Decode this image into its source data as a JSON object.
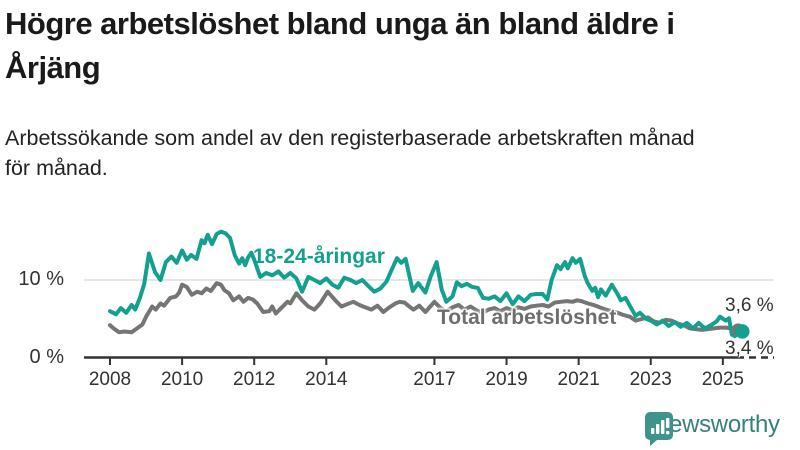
{
  "title": "Högre arbetslöshet bland unga än bland äldre i Årjäng",
  "subtitle": "Arbetssökande som andel av den registerbaserade arbetskraften månad för månad.",
  "branding": {
    "logo_text": "Newsworthy",
    "logo_color": "#35827c",
    "icon_color": "#3e938b"
  },
  "chart_data": {
    "type": "line",
    "unit": "%",
    "title": "Arbetssökande som andel av den registerbaserade arbetskraften månad för månad",
    "x_ticks": [
      "2008",
      "2010",
      "2012",
      "2014",
      "2017",
      "2019",
      "2021",
      "2023",
      "2025"
    ],
    "x_tick_values": [
      2008,
      2010,
      2012,
      2014,
      2017,
      2019,
      2021,
      2023,
      2025
    ],
    "x_range": [
      2008,
      2025.6
    ],
    "y_ticks": [
      {
        "value": 0,
        "label": "0 %"
      },
      {
        "value": 10,
        "label": "10 %"
      }
    ],
    "y_range": [
      0,
      17
    ],
    "grid": "horizontal-10-only",
    "legend_position": "inline-labels",
    "colors": {
      "youth": "#14a08f",
      "total": "#757575",
      "axis": "#333333",
      "gridline": "#dedede"
    },
    "series": [
      {
        "id": "total",
        "label": "Total arbetslöshet",
        "color": "#757575",
        "end_label": "3,6 %",
        "end_value": 3.6,
        "points": [
          [
            2008.0,
            4.2
          ],
          [
            2008.1,
            3.8
          ],
          [
            2008.25,
            3.3
          ],
          [
            2008.4,
            3.4
          ],
          [
            2008.6,
            3.3
          ],
          [
            2008.75,
            3.8
          ],
          [
            2008.9,
            4.3
          ],
          [
            2009.0,
            5.3
          ],
          [
            2009.17,
            6.6
          ],
          [
            2009.27,
            6.2
          ],
          [
            2009.4,
            7.0
          ],
          [
            2009.5,
            6.7
          ],
          [
            2009.67,
            7.7
          ],
          [
            2009.83,
            7.9
          ],
          [
            2009.92,
            8.4
          ],
          [
            2010.0,
            9.4
          ],
          [
            2010.13,
            9.1
          ],
          [
            2010.27,
            8.1
          ],
          [
            2010.42,
            8.5
          ],
          [
            2010.54,
            8.3
          ],
          [
            2010.67,
            8.9
          ],
          [
            2010.8,
            8.6
          ],
          [
            2010.96,
            9.6
          ],
          [
            2011.08,
            9.4
          ],
          [
            2011.17,
            8.7
          ],
          [
            2011.3,
            8.3
          ],
          [
            2011.42,
            7.4
          ],
          [
            2011.58,
            7.9
          ],
          [
            2011.7,
            7.2
          ],
          [
            2011.83,
            7.7
          ],
          [
            2011.96,
            7.5
          ],
          [
            2012.08,
            7.0
          ],
          [
            2012.25,
            5.9
          ],
          [
            2012.42,
            6.0
          ],
          [
            2012.5,
            6.6
          ],
          [
            2012.6,
            5.7
          ],
          [
            2012.75,
            6.4
          ],
          [
            2012.92,
            7.2
          ],
          [
            2013.0,
            7.0
          ],
          [
            2013.17,
            8.3
          ],
          [
            2013.33,
            7.4
          ],
          [
            2013.5,
            6.6
          ],
          [
            2013.67,
            6.2
          ],
          [
            2013.83,
            7.0
          ],
          [
            2014.04,
            8.5
          ],
          [
            2014.25,
            7.4
          ],
          [
            2014.42,
            6.6
          ],
          [
            2014.58,
            6.9
          ],
          [
            2014.75,
            7.2
          ],
          [
            2014.92,
            6.8
          ],
          [
            2015.08,
            6.5
          ],
          [
            2015.25,
            6.2
          ],
          [
            2015.42,
            6.7
          ],
          [
            2015.58,
            5.9
          ],
          [
            2015.75,
            6.5
          ],
          [
            2015.92,
            7.0
          ],
          [
            2016.04,
            7.2
          ],
          [
            2016.17,
            7.1
          ],
          [
            2016.33,
            6.5
          ],
          [
            2016.42,
            6.2
          ],
          [
            2016.58,
            6.7
          ],
          [
            2016.75,
            5.9
          ],
          [
            2016.92,
            6.8
          ],
          [
            2017.0,
            7.2
          ],
          [
            2017.17,
            6.4
          ],
          [
            2017.33,
            6.0
          ],
          [
            2017.5,
            6.5
          ],
          [
            2017.67,
            6.8
          ],
          [
            2017.83,
            6.2
          ],
          [
            2018.0,
            6.6
          ],
          [
            2018.17,
            6.1
          ],
          [
            2018.33,
            5.8
          ],
          [
            2018.5,
            6.2
          ],
          [
            2018.67,
            6.4
          ],
          [
            2018.83,
            6.0
          ],
          [
            2019.0,
            6.4
          ],
          [
            2019.17,
            6.1
          ],
          [
            2019.33,
            6.5
          ],
          [
            2019.5,
            6.3
          ],
          [
            2019.67,
            6.6
          ],
          [
            2019.83,
            6.7
          ],
          [
            2020.0,
            6.8
          ],
          [
            2020.17,
            6.6
          ],
          [
            2020.33,
            7.1
          ],
          [
            2020.5,
            7.2
          ],
          [
            2020.67,
            7.3
          ],
          [
            2020.83,
            7.2
          ],
          [
            2020.96,
            7.4
          ],
          [
            2021.08,
            7.3
          ],
          [
            2021.25,
            7.0
          ],
          [
            2021.42,
            6.8
          ],
          [
            2021.58,
            6.5
          ],
          [
            2021.75,
            6.2
          ],
          [
            2021.92,
            6.0
          ],
          [
            2022.08,
            5.8
          ],
          [
            2022.25,
            5.5
          ],
          [
            2022.42,
            5.3
          ],
          [
            2022.58,
            4.8
          ],
          [
            2022.75,
            5.0
          ],
          [
            2022.92,
            5.2
          ],
          [
            2023.08,
            4.7
          ],
          [
            2023.25,
            4.5
          ],
          [
            2023.42,
            4.9
          ],
          [
            2023.58,
            4.8
          ],
          [
            2023.75,
            4.4
          ],
          [
            2023.92,
            4.2
          ],
          [
            2024.08,
            3.8
          ],
          [
            2024.25,
            3.7
          ],
          [
            2024.42,
            3.6
          ],
          [
            2024.58,
            3.7
          ],
          [
            2024.75,
            3.8
          ],
          [
            2024.92,
            3.9
          ],
          [
            2025.08,
            3.9
          ],
          [
            2025.25,
            3.8
          ],
          [
            2025.42,
            3.6
          ]
        ]
      },
      {
        "id": "youth",
        "label": "18-24-åringar",
        "color": "#14a08f",
        "end_label": "3,4 %",
        "end_value": 3.4,
        "points": [
          [
            2008.0,
            6.0
          ],
          [
            2008.17,
            5.6
          ],
          [
            2008.3,
            6.4
          ],
          [
            2008.45,
            5.8
          ],
          [
            2008.6,
            6.8
          ],
          [
            2008.7,
            6.2
          ],
          [
            2008.83,
            7.7
          ],
          [
            2008.95,
            9.5
          ],
          [
            2009.08,
            13.4
          ],
          [
            2009.25,
            11.0
          ],
          [
            2009.4,
            10.0
          ],
          [
            2009.55,
            12.3
          ],
          [
            2009.7,
            13.0
          ],
          [
            2009.85,
            12.2
          ],
          [
            2010.0,
            13.8
          ],
          [
            2010.13,
            12.6
          ],
          [
            2010.25,
            13.2
          ],
          [
            2010.4,
            12.7
          ],
          [
            2010.54,
            15.1
          ],
          [
            2010.62,
            14.7
          ],
          [
            2010.71,
            15.8
          ],
          [
            2010.83,
            14.6
          ],
          [
            2010.96,
            15.9
          ],
          [
            2011.08,
            16.2
          ],
          [
            2011.2,
            16.0
          ],
          [
            2011.33,
            15.4
          ],
          [
            2011.46,
            13.2
          ],
          [
            2011.58,
            12.1
          ],
          [
            2011.67,
            12.8
          ],
          [
            2011.75,
            11.9
          ],
          [
            2011.83,
            12.9
          ],
          [
            2011.92,
            13.5
          ],
          [
            2012.0,
            12.6
          ],
          [
            2012.17,
            10.4
          ],
          [
            2012.33,
            10.9
          ],
          [
            2012.5,
            10.6
          ],
          [
            2012.67,
            11.1
          ],
          [
            2012.83,
            10.3
          ],
          [
            2013.0,
            10.9
          ],
          [
            2013.17,
            10.2
          ],
          [
            2013.33,
            8.5
          ],
          [
            2013.5,
            10.4
          ],
          [
            2013.67,
            10.0
          ],
          [
            2013.83,
            9.6
          ],
          [
            2014.0,
            10.2
          ],
          [
            2014.17,
            9.4
          ],
          [
            2014.33,
            9.0
          ],
          [
            2014.5,
            10.3
          ],
          [
            2014.67,
            10.0
          ],
          [
            2014.83,
            9.6
          ],
          [
            2015.0,
            10.0
          ],
          [
            2015.17,
            9.2
          ],
          [
            2015.33,
            8.5
          ],
          [
            2015.5,
            8.9
          ],
          [
            2015.67,
            9.8
          ],
          [
            2015.83,
            11.5
          ],
          [
            2015.96,
            12.8
          ],
          [
            2016.08,
            12.2
          ],
          [
            2016.2,
            12.7
          ],
          [
            2016.4,
            8.6
          ],
          [
            2016.55,
            9.6
          ],
          [
            2016.75,
            8.4
          ],
          [
            2016.9,
            10.5
          ],
          [
            2017.06,
            12.3
          ],
          [
            2017.2,
            8.8
          ],
          [
            2017.33,
            7.2
          ],
          [
            2017.5,
            7.9
          ],
          [
            2017.62,
            9.7
          ],
          [
            2017.75,
            9.2
          ],
          [
            2017.9,
            9.5
          ],
          [
            2018.05,
            9.1
          ],
          [
            2018.2,
            9.0
          ],
          [
            2018.35,
            7.7
          ],
          [
            2018.5,
            7.6
          ],
          [
            2018.67,
            7.9
          ],
          [
            2018.83,
            7.3
          ],
          [
            2019.0,
            8.3
          ],
          [
            2019.17,
            6.9
          ],
          [
            2019.33,
            7.9
          ],
          [
            2019.5,
            7.3
          ],
          [
            2019.67,
            8.1
          ],
          [
            2019.83,
            8.2
          ],
          [
            2020.0,
            8.2
          ],
          [
            2020.13,
            7.5
          ],
          [
            2020.25,
            10.0
          ],
          [
            2020.4,
            11.9
          ],
          [
            2020.5,
            11.4
          ],
          [
            2020.62,
            12.3
          ],
          [
            2020.7,
            11.5
          ],
          [
            2020.83,
            12.8
          ],
          [
            2020.92,
            12.2
          ],
          [
            2021.04,
            12.7
          ],
          [
            2021.17,
            10.5
          ],
          [
            2021.25,
            9.6
          ],
          [
            2021.38,
            8.6
          ],
          [
            2021.46,
            9.0
          ],
          [
            2021.54,
            7.8
          ],
          [
            2021.62,
            8.8
          ],
          [
            2021.75,
            8.0
          ],
          [
            2021.92,
            9.4
          ],
          [
            2022.08,
            8.2
          ],
          [
            2022.17,
            7.4
          ],
          [
            2022.3,
            7.7
          ],
          [
            2022.42,
            6.7
          ],
          [
            2022.58,
            5.4
          ],
          [
            2022.7,
            5.8
          ],
          [
            2022.88,
            5.0
          ],
          [
            2023.0,
            4.8
          ],
          [
            2023.17,
            4.3
          ],
          [
            2023.33,
            4.8
          ],
          [
            2023.5,
            4.1
          ],
          [
            2023.67,
            4.6
          ],
          [
            2023.83,
            4.0
          ],
          [
            2024.0,
            4.5
          ],
          [
            2024.17,
            3.8
          ],
          [
            2024.33,
            4.5
          ],
          [
            2024.5,
            3.8
          ],
          [
            2024.67,
            4.2
          ],
          [
            2024.83,
            4.7
          ],
          [
            2024.92,
            5.3
          ],
          [
            2025.08,
            4.8
          ],
          [
            2025.17,
            5.1
          ],
          [
            2025.25,
            3.0
          ],
          [
            2025.33,
            2.8
          ],
          [
            2025.42,
            3.1
          ],
          [
            2025.54,
            3.4
          ]
        ]
      }
    ]
  }
}
